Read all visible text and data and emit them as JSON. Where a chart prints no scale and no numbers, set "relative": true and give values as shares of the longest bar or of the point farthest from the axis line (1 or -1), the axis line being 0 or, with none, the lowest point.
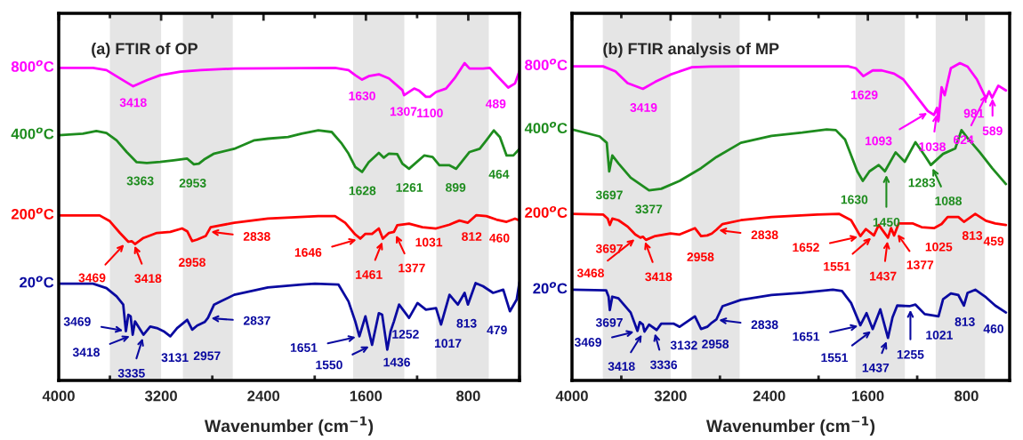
{
  "chart_data": [
    {
      "type": "line",
      "title": "(a) FTIR of OP",
      "xlabel": "Wavenumber (cm$^{−1}$)",
      "relative": true,
      "tick_labels": "x",
      "xlim": [
        4000,
        400
      ],
      "xticks": [
        4000,
        {
          "value": 3600,
          "label": null
        },
        3200,
        {
          "value": 2800,
          "label": null
        },
        2400,
        {
          "value": 2000,
          "label": null
        },
        1600,
        {
          "value": 1200,
          "label": null
        },
        800,
        {
          "value": 400,
          "label": null
        }
      ],
      "bands": [
        {
          "axis": "x",
          "from": 3600,
          "to": 3200,
          "color": "#e5e5e5"
        },
        {
          "axis": "x",
          "from": 3030,
          "to": 2640,
          "color": "#e5e5e5"
        },
        {
          "axis": "x",
          "from": 1700,
          "to": 1300,
          "color": "#e5e5e5"
        },
        {
          "axis": "x",
          "from": 1050,
          "to": 640,
          "color": "#e5e5e5"
        }
      ],
      "series": [
        {
          "name": "800$^{o}$C",
          "color": "#ff00ff",
          "x": [
            4000,
            3732,
            3627,
            3522,
            3418,
            3312,
            3207,
            3049,
            2891,
            2629,
            1841,
            1736,
            1683,
            1630,
            1578,
            1499,
            1420,
            1315,
            1302,
            1223,
            1184,
            1131,
            1100,
            1052,
            974,
            908,
            829,
            790,
            685,
            632,
            580,
            488,
            435,
            400
          ],
          "values": [
            0.985,
            0.985,
            0.978,
            0.952,
            0.927,
            0.946,
            0.962,
            0.973,
            0.978,
            0.983,
            0.985,
            0.978,
            0.962,
            0.948,
            0.959,
            0.965,
            0.952,
            0.915,
            0.899,
            0.92,
            0.913,
            0.894,
            0.894,
            0.909,
            0.92,
            0.952,
            1.0,
            0.983,
            0.983,
            0.985,
            0.962,
            0.923,
            0.936,
            0.976
          ]
        },
        {
          "name": "400$^{o}$C",
          "color": "#1e8c1e",
          "x": [
            4000,
            3811,
            3706,
            3627,
            3548,
            3469,
            3391,
            3312,
            3207,
            3102,
            2996,
            2944,
            2905,
            2865,
            2786,
            2629,
            2471,
            2366,
            2208,
            2103,
            1972,
            1867,
            1788,
            1736,
            1683,
            1630,
            1578,
            1499,
            1460,
            1420,
            1355,
            1315,
            1263,
            1145,
            1079,
            1026,
            947,
            895,
            790,
            711,
            659,
            601,
            553,
            501,
            448,
            400
          ],
          "values": [
            0.773,
            0.778,
            0.786,
            0.78,
            0.757,
            0.72,
            0.688,
            0.685,
            0.689,
            0.694,
            0.699,
            0.681,
            0.683,
            0.696,
            0.715,
            0.73,
            0.757,
            0.762,
            0.767,
            0.778,
            0.788,
            0.783,
            0.746,
            0.715,
            0.673,
            0.657,
            0.688,
            0.717,
            0.702,
            0.715,
            0.713,
            0.683,
            0.667,
            0.709,
            0.704,
            0.678,
            0.678,
            0.667,
            0.72,
            0.73,
            0.757,
            0.788,
            0.767,
            0.709,
            0.709,
            0.73
          ]
        },
        {
          "name": "200$^{o}$C",
          "color": "#ff0000",
          "x": [
            4000,
            3680,
            3601,
            3522,
            3456,
            3430,
            3404,
            3338,
            3233,
            3128,
            3036,
            2996,
            2957,
            2918,
            2852,
            2813,
            2629,
            2366,
            1972,
            1841,
            1762,
            1683,
            1644,
            1604,
            1552,
            1499,
            1468,
            1420,
            1381,
            1355,
            1263,
            1158,
            1052,
            947,
            869,
            803,
            737,
            659,
            580,
            501,
            435,
            400
          ],
          "values": [
            0.52,
            0.52,
            0.502,
            0.465,
            0.437,
            0.439,
            0.43,
            0.449,
            0.465,
            0.468,
            0.479,
            0.47,
            0.439,
            0.444,
            0.455,
            0.483,
            0.497,
            0.51,
            0.518,
            0.518,
            0.497,
            0.46,
            0.447,
            0.462,
            0.462,
            0.479,
            0.447,
            0.465,
            0.468,
            0.489,
            0.494,
            0.483,
            0.479,
            0.491,
            0.504,
            0.497,
            0.521,
            0.518,
            0.507,
            0.5,
            0.51,
            0.504
          ]
        },
        {
          "name": "20$^{o}$C",
          "color": "#0a0aa0",
          "x": [
            4000,
            3732,
            3627,
            3548,
            3496,
            3475,
            3456,
            3438,
            3422,
            3404,
            3338,
            3285,
            3233,
            3180,
            3128,
            3075,
            2996,
            2957,
            2918,
            2860,
            2834,
            2786,
            2734,
            2629,
            2366,
            2103,
            1998,
            1814,
            1736,
            1683,
            1651,
            1604,
            1552,
            1499,
            1473,
            1433,
            1407,
            1381,
            1341,
            1263,
            1197,
            1131,
            1052,
            1013,
            947,
            882,
            829,
            803,
            743,
            685,
            606,
            527,
            475,
            422,
            400
          ],
          "values": [
            0.305,
            0.305,
            0.291,
            0.265,
            0.239,
            0.155,
            0.207,
            0.202,
            0.144,
            0.186,
            0.144,
            0.17,
            0.165,
            0.155,
            0.139,
            0.165,
            0.191,
            0.16,
            0.173,
            0.184,
            0.197,
            0.239,
            0.249,
            0.27,
            0.293,
            0.302,
            0.305,
            0.302,
            0.249,
            0.186,
            0.139,
            0.202,
            0.112,
            0.212,
            0.207,
            0.097,
            0.155,
            0.186,
            0.239,
            0.197,
            0.244,
            0.223,
            0.228,
            0.176,
            0.27,
            0.239,
            0.276,
            0.239,
            0.307,
            0.297,
            0.276,
            0.286,
            0.218,
            0.255,
            0.31
          ]
        }
      ],
      "annotations": [
        {
          "text": "3418",
          "x": 3418,
          "y": 0.927
        },
        {
          "text": "1630",
          "x": 1630,
          "y": 0.948
        },
        {
          "text": "1307",
          "x": 1307,
          "y": 0.899
        },
        {
          "text": "1100",
          "x": 1100,
          "y": 0.894
        },
        {
          "text": "489",
          "x": 489,
          "y": 0.923
        },
        {
          "text": "3363",
          "x": 3363,
          "y": 0.688
        },
        {
          "text": "2953",
          "x": 2953,
          "y": 0.681
        },
        {
          "text": "1628",
          "x": 1628,
          "y": 0.657
        },
        {
          "text": "1261",
          "x": 1261,
          "y": 0.667
        },
        {
          "text": "899",
          "x": 899,
          "y": 0.667
        },
        {
          "text": "464",
          "x": 464,
          "y": 0.709
        },
        {
          "text": "3469",
          "x": 3469,
          "y": 0.437
        },
        {
          "text": "3418",
          "x": 3418,
          "y": 0.435
        },
        {
          "text": "2958",
          "x": 2958,
          "y": 0.439
        },
        {
          "text": "2838",
          "x": 2838,
          "y": 0.47
        },
        {
          "text": "1646",
          "x": 1646,
          "y": 0.447
        },
        {
          "text": "1461",
          "x": 1461,
          "y": 0.447
        },
        {
          "text": "1377",
          "x": 1377,
          "y": 0.468
        },
        {
          "text": "1031",
          "x": 1031,
          "y": 0.479
        },
        {
          "text": "812",
          "x": 812,
          "y": 0.497
        },
        {
          "text": "460",
          "x": 460,
          "y": 0.5
        },
        {
          "text": "3469",
          "x": 3469,
          "y": 0.155
        },
        {
          "text": "3418",
          "x": 3418,
          "y": 0.144
        },
        {
          "text": "3335",
          "x": 3335,
          "y": 0.144
        },
        {
          "text": "3131",
          "x": 3131,
          "y": 0.139
        },
        {
          "text": "2957",
          "x": 2957,
          "y": 0.16
        },
        {
          "text": "2837",
          "x": 2837,
          "y": 0.197
        },
        {
          "text": "1651",
          "x": 1651,
          "y": 0.139
        },
        {
          "text": "1550",
          "x": 1550,
          "y": 0.112
        },
        {
          "text": "1436",
          "x": 1436,
          "y": 0.097
        },
        {
          "text": "1252",
          "x": 1252,
          "y": 0.197
        },
        {
          "text": "1017",
          "x": 1017,
          "y": 0.176
        },
        {
          "text": "813",
          "x": 813,
          "y": 0.239
        },
        {
          "text": "479",
          "x": 479,
          "y": 0.218
        }
      ]
    },
    {
      "type": "line",
      "title": "(b) FTIR analysis of MP",
      "xlabel": "Wavenumber (cm$^{−1}$)",
      "relative": true,
      "tick_labels": "x",
      "xlim": [
        4000,
        450
      ],
      "xticks": [
        4000,
        {
          "value": 3600,
          "label": null
        },
        3200,
        {
          "value": 2800,
          "label": null
        },
        2400,
        {
          "value": 2000,
          "label": null
        },
        1600,
        {
          "value": 1200,
          "label": null
        },
        800
      ],
      "bands": [
        {
          "axis": "x",
          "from": 3750,
          "to": 3200,
          "color": "#e5e5e5"
        },
        {
          "axis": "x",
          "from": 3030,
          "to": 2640,
          "color": "#e5e5e5"
        },
        {
          "axis": "x",
          "from": 1700,
          "to": 1300,
          "color": "#e5e5e5"
        },
        {
          "axis": "x",
          "from": 1050,
          "to": 650,
          "color": "#e5e5e5"
        }
      ],
      "series": [
        {
          "name": "800$^{o}$C",
          "color": "#ff00ff",
          "x": [
            4000,
            3748,
            3648,
            3549,
            3425,
            3325,
            3201,
            3027,
            2878,
            2630,
            2133,
            1760,
            1698,
            1636,
            1561,
            1487,
            1387,
            1313,
            1213,
            1114,
            1064,
            1039,
            1027,
            1002,
            977,
            927,
            853,
            791,
            716,
            642,
            617,
            592,
            542,
            480
          ],
          "values": [
            0.99,
            0.99,
            0.974,
            0.937,
            0.919,
            0.941,
            0.964,
            0.987,
            0.989,
            0.99,
            0.99,
            0.99,
            0.984,
            0.959,
            0.977,
            0.977,
            0.967,
            0.949,
            0.899,
            0.849,
            0.837,
            0.859,
            0.819,
            0.924,
            0.899,
            0.984,
            1.0,
            0.989,
            0.949,
            0.889,
            0.911,
            0.891,
            0.929,
            0.914
          ]
        },
        {
          "name": "400$^{o}$C",
          "color": "#1e8c1e",
          "x": [
            4000,
            3776,
            3718,
            3698,
            3673,
            3623,
            3524,
            3375,
            3276,
            3127,
            2953,
            2829,
            2630,
            2382,
            2133,
            1934,
            1860,
            1785,
            1686,
            1641,
            1587,
            1512,
            1462,
            1375,
            1301,
            1214,
            1139,
            1089,
            990,
            891,
            841,
            791,
            692,
            592,
            480
          ],
          "values": [
            0.791,
            0.769,
            0.749,
            0.659,
            0.709,
            0.684,
            0.639,
            0.599,
            0.604,
            0.629,
            0.669,
            0.704,
            0.749,
            0.771,
            0.781,
            0.791,
            0.789,
            0.759,
            0.659,
            0.629,
            0.659,
            0.679,
            0.659,
            0.719,
            0.689,
            0.751,
            0.709,
            0.679,
            0.714,
            0.731,
            0.789,
            0.764,
            0.719,
            0.669,
            0.619
          ]
        },
        {
          "name": "200$^{o}$C",
          "color": "#ff0000",
          "x": [
            4000,
            3748,
            3710,
            3693,
            3673,
            3623,
            3549,
            3487,
            3445,
            3425,
            3400,
            3325,
            3201,
            3127,
            3003,
            2953,
            2903,
            2866,
            2829,
            2779,
            2630,
            2382,
            2009,
            1835,
            1736,
            1661,
            1616,
            1551,
            1512,
            1437,
            1412,
            1387,
            1350,
            1238,
            1164,
            1064,
            1002,
            953,
            866,
            821,
            729,
            642,
            567,
            480
          ],
          "values": [
            0.525,
            0.523,
            0.51,
            0.49,
            0.51,
            0.505,
            0.485,
            0.46,
            0.45,
            0.453,
            0.443,
            0.455,
            0.463,
            0.46,
            0.48,
            0.455,
            0.457,
            0.463,
            0.475,
            0.493,
            0.505,
            0.515,
            0.523,
            0.525,
            0.505,
            0.455,
            0.477,
            0.457,
            0.49,
            0.45,
            0.48,
            0.457,
            0.495,
            0.495,
            0.483,
            0.48,
            0.493,
            0.515,
            0.515,
            0.5,
            0.525,
            0.503,
            0.495,
            0.49
          ]
        },
        {
          "name": "20$^{o}$C",
          "color": "#0a0aa0",
          "x": [
            4000,
            3723,
            3703,
            3693,
            3673,
            3623,
            3524,
            3469,
            3450,
            3425,
            3412,
            3375,
            3313,
            3276,
            3177,
            3127,
            3003,
            2953,
            2903,
            2866,
            2829,
            2779,
            2630,
            2382,
            2133,
            1884,
            1810,
            1736,
            1661,
            1611,
            1561,
            1499,
            1437,
            1400,
            1362,
            1263,
            1214,
            1139,
            1027,
            990,
            927,
            866,
            821,
            791,
            729,
            642,
            567,
            480
          ],
          "values": [
            0.286,
            0.284,
            0.264,
            0.222,
            0.264,
            0.259,
            0.214,
            0.156,
            0.184,
            0.176,
            0.154,
            0.176,
            0.159,
            0.179,
            0.179,
            0.169,
            0.202,
            0.162,
            0.169,
            0.182,
            0.192,
            0.234,
            0.254,
            0.269,
            0.276,
            0.286,
            0.282,
            0.244,
            0.174,
            0.212,
            0.162,
            0.224,
            0.134,
            0.199,
            0.236,
            0.234,
            0.239,
            0.209,
            0.202,
            0.256,
            0.274,
            0.269,
            0.236,
            0.276,
            0.286,
            0.262,
            0.236,
            0.214
          ]
        }
      ],
      "annotations": [
        {
          "text": "3419",
          "x": 3419,
          "y": 0.919
        },
        {
          "text": "1629",
          "x": 1629,
          "y": 0.959
        },
        {
          "text": "1093",
          "x": 1093,
          "y": 0.849
        },
        {
          "text": "1038",
          "x": 1038,
          "y": 0.85
        },
        {
          "text": "981",
          "x": 981,
          "y": 0.924
        },
        {
          "text": "624",
          "x": 624,
          "y": 0.911
        },
        {
          "text": "589",
          "x": 589,
          "y": 0.9
        },
        {
          "text": "3697",
          "x": 3697,
          "y": 0.659
        },
        {
          "text": "3377",
          "x": 3377,
          "y": 0.599
        },
        {
          "text": "1630",
          "x": 1630,
          "y": 0.629
        },
        {
          "text": "1450",
          "x": 1450,
          "y": 0.659
        },
        {
          "text": "1283",
          "x": 1283,
          "y": 0.69
        },
        {
          "text": "1088",
          "x": 1088,
          "y": 0.679
        },
        {
          "text": "3697",
          "x": 3697,
          "y": 0.49
        },
        {
          "text": "3468",
          "x": 3468,
          "y": 0.452
        },
        {
          "text": "3418",
          "x": 3418,
          "y": 0.448
        },
        {
          "text": "2958",
          "x": 2958,
          "y": 0.456
        },
        {
          "text": "2838",
          "x": 2838,
          "y": 0.475
        },
        {
          "text": "1652",
          "x": 1652,
          "y": 0.455
        },
        {
          "text": "1551",
          "x": 1551,
          "y": 0.457
        },
        {
          "text": "1437",
          "x": 1437,
          "y": 0.45
        },
        {
          "text": "1377",
          "x": 1377,
          "y": 0.47
        },
        {
          "text": "1025",
          "x": 1025,
          "y": 0.48
        },
        {
          "text": "813",
          "x": 813,
          "y": 0.5
        },
        {
          "text": "459",
          "x": 459,
          "y": 0.49
        },
        {
          "text": "3697",
          "x": 3697,
          "y": 0.222
        },
        {
          "text": "3469",
          "x": 3469,
          "y": 0.156
        },
        {
          "text": "3418",
          "x": 3418,
          "y": 0.154
        },
        {
          "text": "3336",
          "x": 3336,
          "y": 0.159
        },
        {
          "text": "3132",
          "x": 3132,
          "y": 0.17
        },
        {
          "text": "2958",
          "x": 2958,
          "y": 0.162
        },
        {
          "text": "2838",
          "x": 2838,
          "y": 0.192
        },
        {
          "text": "1651",
          "x": 1651,
          "y": 0.174
        },
        {
          "text": "1551",
          "x": 1551,
          "y": 0.162
        },
        {
          "text": "1437",
          "x": 1437,
          "y": 0.134
        },
        {
          "text": "1255",
          "x": 1255,
          "y": 0.234
        },
        {
          "text": "1021",
          "x": 1021,
          "y": 0.202
        },
        {
          "text": "813",
          "x": 813,
          "y": 0.236
        },
        {
          "text": "460",
          "x": 460,
          "y": 0.214
        }
      ]
    }
  ]
}
